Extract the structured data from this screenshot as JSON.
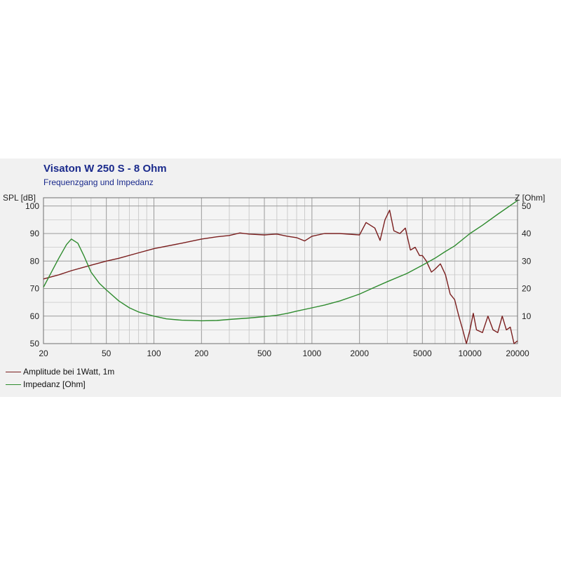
{
  "chart_data": {
    "type": "line",
    "title": "Visaton W 250 S - 8 Ohm",
    "subtitle": "Frequenzgang und Impedanz",
    "xscale": "log",
    "xlim": [
      20,
      20000
    ],
    "x_ticks": [
      "20",
      "50",
      "100",
      "200",
      "500",
      "1000",
      "2000",
      "5000",
      "10000",
      "20000"
    ],
    "y_left": {
      "label": "SPL [dB]",
      "lim": [
        50,
        103
      ],
      "ticks": [
        "50",
        "60",
        "70",
        "80",
        "90",
        "100"
      ]
    },
    "y_right": {
      "label": "Z [Ohm]",
      "lim": [
        0,
        53
      ],
      "ticks": [
        "10",
        "20",
        "30",
        "40",
        "50"
      ]
    },
    "grid": true,
    "legend_position": "bottom-left",
    "series": [
      {
        "name": "Amplitude bei 1Watt, 1m",
        "axis": "left",
        "color": "#7a1e1e",
        "x": [
          20,
          25,
          30,
          40,
          50,
          60,
          80,
          100,
          150,
          200,
          250,
          300,
          350,
          400,
          500,
          600,
          700,
          800,
          900,
          1000,
          1200,
          1500,
          2000,
          2200,
          2500,
          2700,
          2900,
          3100,
          3300,
          3600,
          3900,
          4200,
          4500,
          4800,
          5000,
          5300,
          5700,
          6000,
          6500,
          7000,
          7500,
          8000,
          8500,
          9000,
          9500,
          10000,
          10500,
          11000,
          12000,
          13000,
          14000,
          15000,
          16000,
          17000,
          18000,
          19000,
          20000
        ],
        "values": [
          73.5,
          75,
          76.5,
          78.5,
          80,
          81,
          83,
          84.5,
          86.5,
          88,
          88.8,
          89.3,
          90.2,
          89.8,
          89.5,
          89.8,
          89,
          88.5,
          87.3,
          89,
          90,
          90,
          89.5,
          94,
          92,
          87.5,
          95,
          98.5,
          91,
          90,
          92,
          84,
          85,
          82,
          82,
          80,
          76,
          77,
          79,
          75,
          68,
          66,
          60,
          55,
          50,
          55,
          61,
          55,
          54,
          60,
          55,
          54,
          60,
          55,
          56,
          50,
          51
        ]
      },
      {
        "name": "Impedanz [Ohm]",
        "axis": "right",
        "color": "#2e8b2e",
        "x": [
          20,
          22,
          25,
          28,
          30,
          33,
          36,
          40,
          45,
          50,
          60,
          70,
          80,
          100,
          120,
          150,
          200,
          250,
          300,
          400,
          500,
          600,
          700,
          800,
          1000,
          1200,
          1500,
          2000,
          2500,
          3000,
          4000,
          5000,
          6000,
          7000,
          8000,
          10000,
          12000,
          15000,
          20000
        ],
        "values": [
          20.5,
          25,
          31,
          36,
          38,
          36.5,
          32,
          26,
          22,
          19.5,
          15.5,
          13,
          11.5,
          10,
          9,
          8.5,
          8.3,
          8.4,
          8.8,
          9.3,
          9.8,
          10.3,
          11,
          11.8,
          13,
          14,
          15.5,
          18,
          20.5,
          22.5,
          25.5,
          28.5,
          31,
          33.5,
          35.5,
          40,
          43,
          47,
          52
        ]
      }
    ]
  },
  "legend": {
    "amplitude_label": "Amplitude bei 1Watt, 1m",
    "impedance_label": "Impedanz [Ohm]"
  }
}
